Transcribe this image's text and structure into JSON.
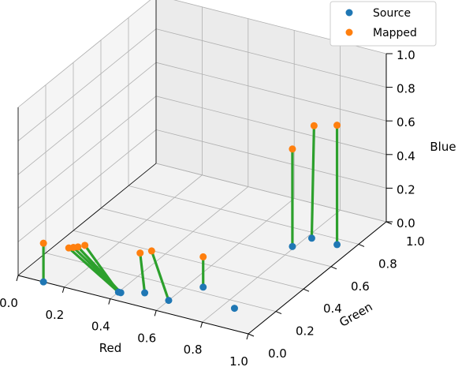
{
  "chart_data": {
    "type": "scatter",
    "projection": "3d",
    "title": "",
    "xlabel": "Red",
    "ylabel": "Green",
    "zlabel": "Blue",
    "xlim": [
      0,
      1
    ],
    "ylim": [
      0,
      1
    ],
    "zlim": [
      0,
      1
    ],
    "xticks": [
      "0.0",
      "0.2",
      "0.4",
      "0.6",
      "0.8",
      "1.0"
    ],
    "yticks": [
      "0.0",
      "0.2",
      "0.4",
      "0.6",
      "0.8",
      "1.0"
    ],
    "zticks": [
      "0.0",
      "0.2",
      "0.4",
      "0.6",
      "0.8",
      "1.0"
    ],
    "grid": true,
    "legend_position": "top-right",
    "colors": {
      "source": "#1f77b4",
      "mapped": "#ff7f0e",
      "link": "#2ca02c"
    },
    "series": [
      {
        "name": "Source",
        "points": [
          [
            0.11,
            0.0,
            0.0
          ],
          [
            0.4,
            0.06,
            0.0
          ],
          [
            0.41,
            0.06,
            0.0
          ],
          [
            0.49,
            0.1,
            0.0
          ],
          [
            0.6,
            0.09,
            0.0
          ],
          [
            0.66,
            0.24,
            0.0
          ],
          [
            0.85,
            0.15,
            0.0
          ],
          [
            0.79,
            0.67,
            0.0
          ],
          [
            0.82,
            0.76,
            0.0
          ],
          [
            0.93,
            0.76,
            0.0
          ]
        ]
      },
      {
        "name": "Mapped",
        "points": [
          [
            0.11,
            0.0,
            0.23
          ],
          [
            0.22,
            0.0,
            0.24
          ],
          [
            0.24,
            0.0,
            0.25
          ],
          [
            0.26,
            0.0,
            0.26
          ],
          [
            0.29,
            0.0,
            0.28
          ],
          [
            0.47,
            0.1,
            0.23
          ],
          [
            0.52,
            0.1,
            0.26
          ],
          [
            0.66,
            0.24,
            0.18
          ],
          [
            0.79,
            0.67,
            0.58
          ],
          [
            0.89,
            0.66,
            0.76
          ],
          [
            0.93,
            0.76,
            0.71
          ]
        ]
      }
    ],
    "links": [
      [
        0,
        0
      ],
      [
        1,
        1
      ],
      [
        2,
        2
      ],
      [
        2,
        3
      ],
      [
        1,
        4
      ],
      [
        3,
        5
      ],
      [
        4,
        6
      ],
      [
        5,
        7
      ],
      [
        7,
        8
      ],
      [
        8,
        9
      ],
      [
        9,
        10
      ]
    ]
  }
}
